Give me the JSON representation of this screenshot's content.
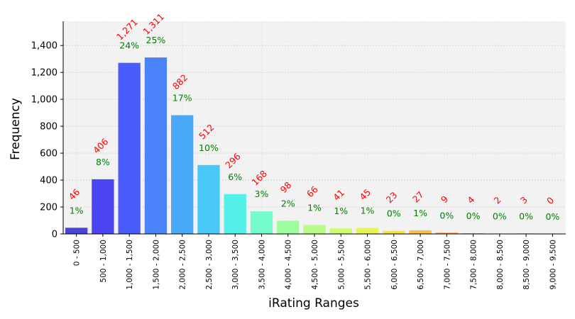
{
  "chart_data": {
    "type": "bar",
    "title": "",
    "xlabel": "iRating Ranges",
    "ylabel": "Frequency",
    "ylim": [
      0,
      1580
    ],
    "yticks": [
      0,
      200,
      400,
      600,
      800,
      1000,
      1200,
      1400
    ],
    "ytick_labels": [
      "0",
      "200",
      "400",
      "600",
      "800",
      "1,000",
      "1,200",
      "1,400"
    ],
    "grid": true,
    "categories": [
      "0 - 500",
      "500 - 1,000",
      "1,000 - 1,500",
      "1,500 - 2,000",
      "2,000 - 2,500",
      "2,500 - 3,000",
      "3,000 - 3,500",
      "3,500 - 4,000",
      "4,000 - 4,500",
      "4,500 - 5,000",
      "5,000 - 5,500",
      "5,500 - 6,000",
      "6,000 - 6,500",
      "6,500 - 7,000",
      "7,000 - 7,500",
      "7,500 - 8,000",
      "8,000 - 8,500",
      "8,500 - 9,000",
      "9,000 - 9,500"
    ],
    "values": [
      46,
      406,
      1271,
      1311,
      882,
      512,
      296,
      168,
      98,
      66,
      41,
      45,
      23,
      27,
      9,
      4,
      2,
      3,
      0
    ],
    "count_labels": [
      "46",
      "406",
      "1,271",
      "1,311",
      "882",
      "512",
      "296",
      "168",
      "98",
      "66",
      "41",
      "45",
      "23",
      "27",
      "9",
      "4",
      "2",
      "3",
      "0"
    ],
    "percent_labels": [
      "1%",
      "8%",
      "24%",
      "25%",
      "17%",
      "10%",
      "6%",
      "3%",
      "2%",
      "1%",
      "1%",
      "1%",
      "0%",
      "1%",
      "0%",
      "0%",
      "0%",
      "0%",
      "0%"
    ],
    "colors": [
      "#4b45d6",
      "#4b45f2",
      "#4b5cfc",
      "#4b83fa",
      "#4aa8f8",
      "#4ac9f8",
      "#52f0e6",
      "#74fcca",
      "#9cfca0",
      "#b6fc86",
      "#ccfc72",
      "#e6f458",
      "#f6e04c",
      "#fcbc4a",
      "#fc9448",
      "#f87044",
      "#f44a3c",
      "#ee3030",
      "#e81c1c"
    ],
    "count_label_color": "#ff0000",
    "percent_label_color": "#008000",
    "plot_background": "#f2f2f2"
  }
}
